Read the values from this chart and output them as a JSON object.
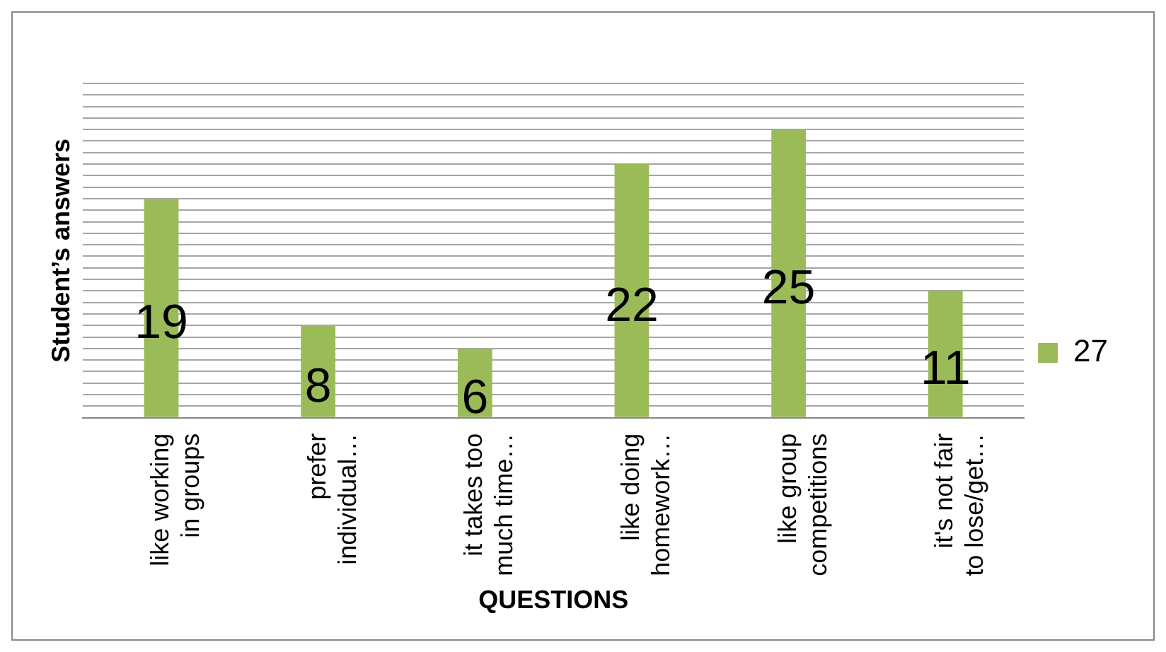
{
  "chart_data": {
    "type": "bar",
    "xlabel": "QUESTIONS",
    "ylabel": "Student’s answers",
    "categories": [
      "like working in groups",
      "prefer individual…",
      "it takes too much time…",
      "like doing homework…",
      "like group competitions",
      "it's not fair to lose/get…"
    ],
    "series": [
      {
        "name": "27",
        "color": "#9bbb59",
        "values": [
          19,
          8,
          6,
          22,
          25,
          11
        ]
      }
    ],
    "ylim": [
      0,
      29
    ],
    "yticks": [
      {
        "value": 0,
        "label": null
      },
      {
        "value": 1,
        "label": null
      },
      {
        "value": 2,
        "label": null
      },
      {
        "value": 3,
        "label": null
      },
      {
        "value": 4,
        "label": null
      },
      {
        "value": 5,
        "label": null
      },
      {
        "value": 6,
        "label": null
      },
      {
        "value": 7,
        "label": null
      },
      {
        "value": 8,
        "label": null
      },
      {
        "value": 9,
        "label": null
      },
      {
        "value": 10,
        "label": null
      },
      {
        "value": 11,
        "label": null
      },
      {
        "value": 12,
        "label": null
      },
      {
        "value": 13,
        "label": null
      },
      {
        "value": 14,
        "label": null
      },
      {
        "value": 15,
        "label": null
      },
      {
        "value": 16,
        "label": null
      },
      {
        "value": 17,
        "label": null
      },
      {
        "value": 18,
        "label": null
      },
      {
        "value": 19,
        "label": null
      },
      {
        "value": 20,
        "label": null
      },
      {
        "value": 21,
        "label": null
      },
      {
        "value": 22,
        "label": null
      },
      {
        "value": 23,
        "label": null
      },
      {
        "value": 24,
        "label": null
      },
      {
        "value": 25,
        "label": null
      },
      {
        "value": 26,
        "label": null
      },
      {
        "value": 27,
        "label": null
      },
      {
        "value": 28,
        "label": null
      },
      {
        "value": 29,
        "label": null
      }
    ],
    "grid": "y",
    "legend": "right",
    "data_labels": true,
    "tick_labels": "x"
  }
}
